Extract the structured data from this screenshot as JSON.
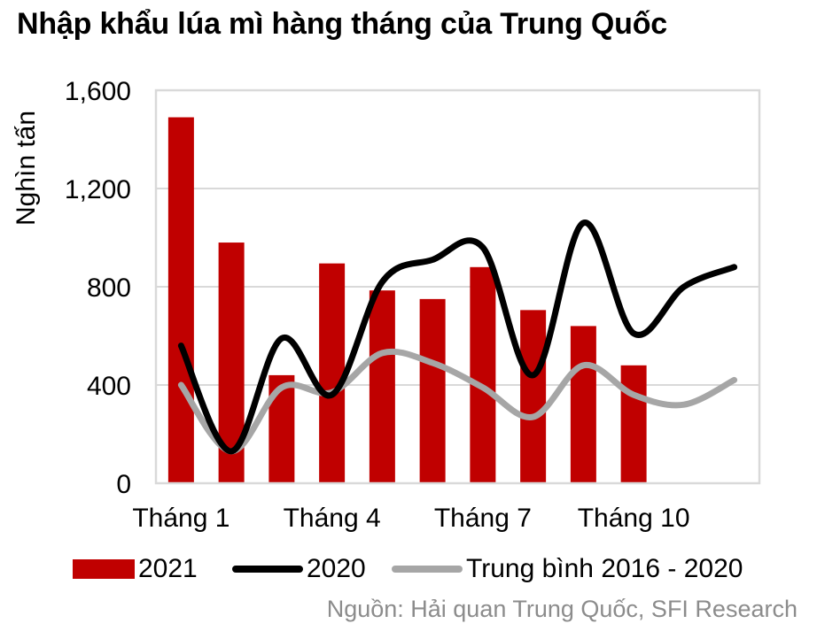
{
  "title": "Nhập khẩu lúa mì hàng tháng của Trung Quốc",
  "source": "Nguồn: Hải quan Trung Quốc, SFI Research",
  "colors": {
    "bar_2021": "#c00000",
    "line_2020": "#000000",
    "line_avg": "#a6a6a6",
    "grid": "#d9d9d9"
  },
  "chart_data": {
    "type": "bar",
    "title": "Nhập khẩu lúa mì hàng tháng của Trung Quốc",
    "ylabel": "Nghìn tấn",
    "xlabel": "",
    "ylim": [
      0,
      1600
    ],
    "yticks": [
      0,
      400,
      800,
      1200,
      1600
    ],
    "ytick_labels": [
      "0",
      "400",
      "800",
      "1,200",
      "1,600"
    ],
    "categories": [
      "1",
      "2",
      "3",
      "4",
      "5",
      "6",
      "7",
      "8",
      "9",
      "10",
      "11",
      "12"
    ],
    "xtick_labels": [
      {
        "index": 0,
        "label": "Tháng 1"
      },
      {
        "index": 3,
        "label": "Tháng 4"
      },
      {
        "index": 6,
        "label": "Tháng 7"
      },
      {
        "index": 9,
        "label": "Tháng 10"
      }
    ],
    "grid": true,
    "legend_position": "bottom",
    "series": [
      {
        "name": "2021",
        "type": "bar",
        "color": "#c00000",
        "values": [
          1490,
          980,
          440,
          895,
          785,
          750,
          880,
          705,
          640,
          480,
          null,
          null
        ]
      },
      {
        "name": "2020",
        "type": "line",
        "color": "#000000",
        "values": [
          560,
          130,
          590,
          360,
          820,
          910,
          960,
          440,
          1060,
          610,
          800,
          880
        ]
      },
      {
        "name": "Trung bình 2016 - 2020",
        "type": "line",
        "color": "#a6a6a6",
        "values": [
          400,
          130,
          390,
          370,
          530,
          490,
          390,
          270,
          480,
          360,
          320,
          420
        ]
      }
    ]
  }
}
